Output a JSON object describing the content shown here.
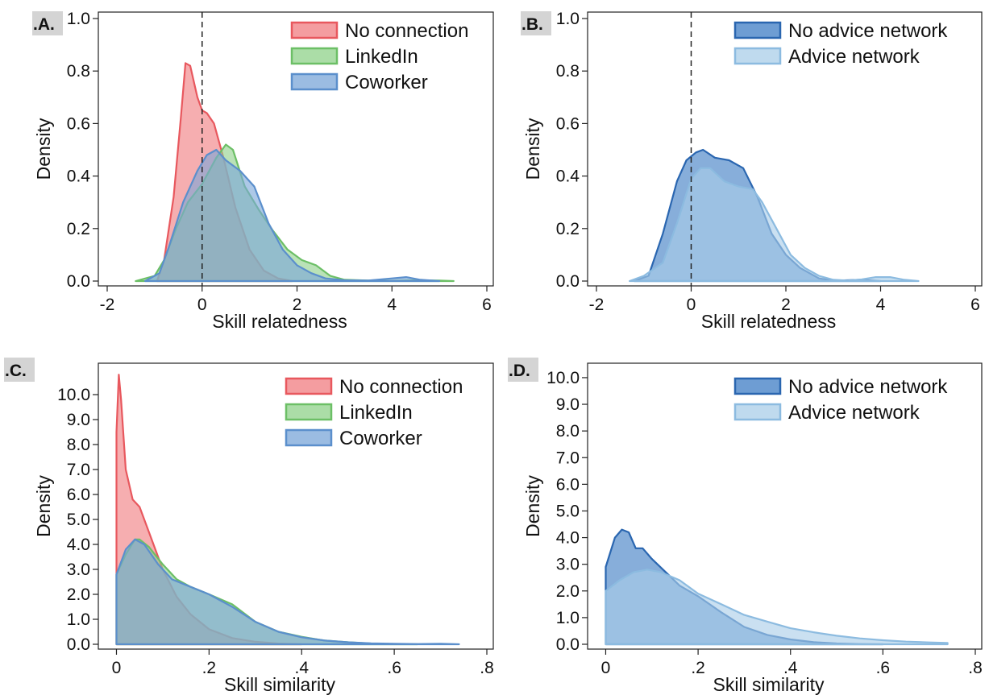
{
  "chart_data": [
    {
      "type": "area",
      "panel_label": ".A.",
      "xlabel": "Skill relatedness",
      "ylabel": "Density",
      "xlim": [
        -2,
        6
      ],
      "ylim": [
        0,
        1
      ],
      "xticks": [
        -2,
        0,
        2,
        4,
        6
      ],
      "xtick_labels": [
        "-2",
        "0",
        "2",
        "4",
        "6"
      ],
      "yticks": [
        0,
        0.2,
        0.4,
        0.6,
        0.8,
        1.0
      ],
      "ytick_labels": [
        "0.0",
        "0.2",
        "0.4",
        "0.6",
        "0.8",
        "1.0"
      ],
      "vline_x": 0,
      "legend_position": "top-right",
      "series": [
        {
          "name": "No connection",
          "fill": "#f07c80",
          "stroke": "#e8585e",
          "x": [
            -0.95,
            -0.8,
            -0.6,
            -0.45,
            -0.35,
            -0.25,
            -0.1,
            0.0,
            0.1,
            0.25,
            0.45,
            0.7,
            1.0,
            1.3,
            1.6,
            1.9
          ],
          "y": [
            0.0,
            0.08,
            0.32,
            0.62,
            0.83,
            0.82,
            0.7,
            0.65,
            0.64,
            0.6,
            0.47,
            0.28,
            0.12,
            0.04,
            0.01,
            0.0
          ]
        },
        {
          "name": "LinkedIn",
          "fill": "#8fd18a",
          "stroke": "#6cbf66",
          "x": [
            -1.4,
            -1.0,
            -0.8,
            -0.55,
            -0.3,
            0.0,
            0.3,
            0.5,
            0.65,
            0.9,
            1.2,
            1.5,
            1.8,
            2.1,
            2.4,
            2.7,
            3.0,
            3.5,
            4.0,
            4.5,
            5.0,
            5.3
          ],
          "y": [
            0.0,
            0.02,
            0.08,
            0.2,
            0.3,
            0.37,
            0.47,
            0.52,
            0.5,
            0.36,
            0.27,
            0.19,
            0.12,
            0.08,
            0.06,
            0.02,
            0.005,
            0.002,
            0.001,
            0.003,
            0.002,
            0.0
          ]
        },
        {
          "name": "Coworker",
          "fill": "#7aa6d8",
          "stroke": "#5b8fcc",
          "x": [
            -1.2,
            -0.9,
            -0.7,
            -0.4,
            -0.1,
            0.1,
            0.3,
            0.5,
            0.8,
            1.1,
            1.4,
            1.7,
            2.0,
            2.3,
            2.6,
            3.0,
            3.5,
            4.0,
            4.3,
            4.6,
            5.0
          ],
          "y": [
            0.0,
            0.03,
            0.13,
            0.3,
            0.42,
            0.48,
            0.5,
            0.46,
            0.42,
            0.36,
            0.22,
            0.12,
            0.06,
            0.03,
            0.01,
            0.003,
            0.002,
            0.01,
            0.015,
            0.005,
            0.0
          ]
        }
      ]
    },
    {
      "type": "area",
      "panel_label": ".B.",
      "xlabel": "Skill relatedness",
      "ylabel": "Density",
      "xlim": [
        -2,
        6
      ],
      "ylim": [
        0,
        1
      ],
      "xticks": [
        -2,
        0,
        2,
        4,
        6
      ],
      "xtick_labels": [
        "-2",
        "0",
        "2",
        "4",
        "6"
      ],
      "yticks": [
        0,
        0.2,
        0.4,
        0.6,
        0.8,
        1.0
      ],
      "ytick_labels": [
        "0.0",
        "0.2",
        "0.4",
        "0.6",
        "0.8",
        "1.0"
      ],
      "vline_x": 0,
      "legend_position": "top-right",
      "series": [
        {
          "name": "No advice network",
          "fill": "#3d7cc4",
          "stroke": "#2a66b0",
          "x": [
            -1.2,
            -0.9,
            -0.6,
            -0.3,
            -0.1,
            0.1,
            0.25,
            0.5,
            0.8,
            1.1,
            1.4,
            1.7,
            2.0,
            2.3,
            2.7,
            3.0,
            3.3,
            3.6,
            4.0
          ],
          "y": [
            0.0,
            0.02,
            0.18,
            0.38,
            0.46,
            0.49,
            0.5,
            0.47,
            0.46,
            0.43,
            0.32,
            0.18,
            0.1,
            0.05,
            0.01,
            0.002,
            0.003,
            0.005,
            0.0
          ]
        },
        {
          "name": "Advice network",
          "fill": "#a9cde8",
          "stroke": "#8cbbe0",
          "x": [
            -1.3,
            -1.0,
            -0.6,
            -0.3,
            0.0,
            0.2,
            0.4,
            0.7,
            1.0,
            1.3,
            1.5,
            1.8,
            2.1,
            2.4,
            2.7,
            3.0,
            3.3,
            3.6,
            3.9,
            4.2,
            4.5,
            4.8
          ],
          "y": [
            0.0,
            0.02,
            0.07,
            0.22,
            0.39,
            0.43,
            0.43,
            0.38,
            0.36,
            0.35,
            0.3,
            0.2,
            0.1,
            0.05,
            0.02,
            0.005,
            0.002,
            0.006,
            0.015,
            0.015,
            0.005,
            0.0
          ]
        }
      ]
    },
    {
      "type": "area",
      "panel_label": ".C.",
      "xlabel": "Skill similarity",
      "ylabel": "Density",
      "xlim": [
        -0.02,
        0.8
      ],
      "ylim": [
        0,
        11
      ],
      "xticks": [
        0,
        0.2,
        0.4,
        0.6,
        0.8
      ],
      "xtick_labels": [
        "0",
        ".2",
        ".4",
        ".6",
        ".8"
      ],
      "yticks": [
        0,
        1,
        2,
        3,
        4,
        5,
        6,
        7,
        8,
        9,
        10
      ],
      "ytick_labels": [
        "0.0",
        "1.0",
        "2.0",
        "3.0",
        "4.0",
        "5.0",
        "6.0",
        "7.0",
        "8.0",
        "9.0",
        "10.0"
      ],
      "legend_position": "top-right",
      "series": [
        {
          "name": "No connection",
          "fill": "#f07c80",
          "stroke": "#e8585e",
          "x": [
            0.0,
            0.0,
            0.005,
            0.01,
            0.02,
            0.035,
            0.05,
            0.07,
            0.1,
            0.13,
            0.16,
            0.2,
            0.25,
            0.3,
            0.35,
            0.4
          ],
          "y": [
            0.0,
            8.5,
            10.8,
            9.8,
            7.0,
            5.8,
            5.5,
            4.5,
            3.0,
            1.9,
            1.2,
            0.6,
            0.25,
            0.1,
            0.03,
            0.0
          ]
        },
        {
          "name": "LinkedIn",
          "fill": "#8fd18a",
          "stroke": "#6cbf66",
          "x": [
            0.0,
            0.0,
            0.02,
            0.04,
            0.05,
            0.07,
            0.1,
            0.13,
            0.16,
            0.2,
            0.25,
            0.3,
            0.35,
            0.4,
            0.45,
            0.5,
            0.55,
            0.6,
            0.65
          ],
          "y": [
            0.0,
            2.8,
            3.6,
            4.2,
            4.2,
            3.9,
            3.2,
            2.6,
            2.3,
            2.0,
            1.6,
            0.9,
            0.5,
            0.3,
            0.15,
            0.08,
            0.03,
            0.01,
            0.0
          ]
        },
        {
          "name": "Coworker",
          "fill": "#7aa6d8",
          "stroke": "#5b8fcc",
          "x": [
            0.0,
            0.0,
            0.02,
            0.04,
            0.06,
            0.09,
            0.12,
            0.16,
            0.2,
            0.25,
            0.3,
            0.35,
            0.4,
            0.45,
            0.5,
            0.55,
            0.6,
            0.65,
            0.7,
            0.74
          ],
          "y": [
            0.0,
            2.8,
            3.8,
            4.2,
            4.0,
            3.2,
            2.6,
            2.3,
            2.0,
            1.5,
            0.9,
            0.5,
            0.28,
            0.15,
            0.08,
            0.04,
            0.02,
            0.01,
            0.02,
            0.0
          ]
        }
      ]
    },
    {
      "type": "area",
      "panel_label": ".D.",
      "xlabel": "Skill similarity",
      "ylabel": "Density",
      "xlim": [
        -0.02,
        0.8
      ],
      "ylim": [
        0,
        10.3
      ],
      "xticks": [
        0,
        0.2,
        0.4,
        0.6,
        0.8
      ],
      "xtick_labels": [
        "0",
        ".2",
        ".4",
        ".6",
        ".8"
      ],
      "yticks": [
        0,
        1,
        2,
        3,
        4,
        5,
        6,
        7,
        8,
        9,
        10
      ],
      "ytick_labels": [
        "0.0",
        "1.0",
        "2.0",
        "3.0",
        "4.0",
        "5.0",
        "6.0",
        "7.0",
        "8.0",
        "9.0",
        "10.0"
      ],
      "legend_position": "top-right",
      "series": [
        {
          "name": "No advice network",
          "fill": "#3d7cc4",
          "stroke": "#2a66b0",
          "x": [
            0.0,
            0.0,
            0.02,
            0.035,
            0.05,
            0.065,
            0.08,
            0.1,
            0.13,
            0.16,
            0.2,
            0.25,
            0.3,
            0.35,
            0.4,
            0.45,
            0.5,
            0.55,
            0.6
          ],
          "y": [
            0.0,
            2.9,
            4.0,
            4.3,
            4.2,
            3.6,
            3.6,
            3.2,
            2.7,
            2.2,
            1.8,
            1.2,
            0.65,
            0.35,
            0.18,
            0.08,
            0.03,
            0.01,
            0.0
          ]
        },
        {
          "name": "Advice network",
          "fill": "#a9cde8",
          "stroke": "#8cbbe0",
          "x": [
            0.0,
            0.0,
            0.03,
            0.06,
            0.09,
            0.12,
            0.16,
            0.2,
            0.25,
            0.3,
            0.35,
            0.4,
            0.45,
            0.5,
            0.55,
            0.6,
            0.65,
            0.7,
            0.74
          ],
          "y": [
            0.0,
            2.0,
            2.4,
            2.7,
            2.8,
            2.7,
            2.4,
            1.9,
            1.5,
            1.1,
            0.85,
            0.6,
            0.45,
            0.32,
            0.22,
            0.15,
            0.1,
            0.07,
            0.05
          ]
        }
      ]
    }
  ]
}
